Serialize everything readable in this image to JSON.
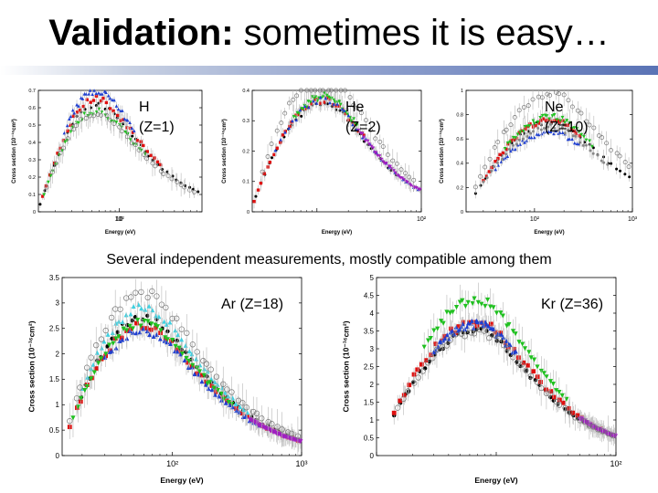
{
  "slide": {
    "title_bold": "Validation:",
    "title_rest": " sometimes it is easy…",
    "subtitle": "Several independent measurements, mostly compatible among them"
  },
  "colors": {
    "black": "#000000",
    "red": "#e01010",
    "green": "#20c020",
    "blue": "#1f3fd0",
    "cyan": "#40d0e0",
    "magenta": "#a020c0",
    "gray": "#888888",
    "open": "#777777",
    "err": "#b8b8b8"
  },
  "chart_data": [
    {
      "id": "H",
      "type": "scatter",
      "label_line1": "H",
      "label_line2": "(Z=1)",
      "xlabel": "Energy (eV)",
      "ylabel": "Cross section (10⁻¹⁶cm²)",
      "xscale": "log",
      "xlim": [
        13,
        800
      ],
      "ylim": [
        0,
        0.7
      ],
      "xticks": [
        "10",
        "10²"
      ],
      "yticks": [
        "0",
        "0.1",
        "0.2",
        "0.3",
        "0.4",
        "0.5",
        "0.6",
        "0.7"
      ],
      "peak_x": 55,
      "width": 1.0,
      "tail": 0.65,
      "series": [
        {
          "style": "black",
          "peak": 0.62,
          "xmin": 13.6,
          "xmax": 800
        },
        {
          "style": "red",
          "peak": 0.65,
          "xmin": 14.5,
          "xmax": 300
        },
        {
          "style": "blue",
          "peak": 0.7,
          "xmin": 25,
          "xmax": 150
        },
        {
          "style": "green",
          "peak": 0.58,
          "xmin": 15,
          "xmax": 200
        },
        {
          "style": "open",
          "peak": 0.57,
          "xmin": 16,
          "xmax": 700
        }
      ]
    },
    {
      "id": "He",
      "type": "scatter",
      "label_line1": "He",
      "label_line2": "(Z=2)",
      "xlabel": "Energy (eV)",
      "ylabel": "Cross section (10⁻¹⁶cm²)",
      "xscale": "log",
      "xlim": [
        24,
        1000
      ],
      "ylim": [
        0,
        0.4
      ],
      "xticks": [
        "10²"
      ],
      "yticks": [
        "0",
        "0.1",
        "0.2",
        "0.3",
        "0.4"
      ],
      "peak_x": 120,
      "width": 0.85,
      "tail": 0.85,
      "series": [
        {
          "style": "black",
          "peak": 0.36,
          "xmin": 26,
          "xmax": 600
        },
        {
          "style": "red",
          "peak": 0.37,
          "xmin": 25,
          "xmax": 300
        },
        {
          "style": "green",
          "peak": 0.38,
          "xmin": 60,
          "xmax": 250
        },
        {
          "style": "blue",
          "peak": 0.37,
          "xmin": 40,
          "xmax": 1000
        },
        {
          "style": "magenta",
          "peak": 0.37,
          "xmin": 250,
          "xmax": 1000
        },
        {
          "style": "open",
          "peak": 0.46,
          "xmin": 30,
          "xmax": 900
        }
      ]
    },
    {
      "id": "Ne",
      "type": "scatter",
      "label_line1": "Ne",
      "label_line2": "(Z=10)",
      "xlabel": "Energy (eV)",
      "ylabel": "Cross section (10⁻¹⁶cm²)",
      "xscale": "log",
      "xlim": [
        20,
        1000
      ],
      "ylim": [
        0,
        1.0
      ],
      "xticks": [
        "10²",
        "10³"
      ],
      "yticks": [
        "0",
        "0.2",
        "0.4",
        "0.6",
        "0.8",
        "1"
      ],
      "peak_x": 150,
      "width": 0.95,
      "tail": 0.6,
      "series": [
        {
          "style": "black",
          "peak": 0.74,
          "xmin": 25,
          "xmax": 1000
        },
        {
          "style": "red",
          "peak": 0.76,
          "xmin": 30,
          "xmax": 300
        },
        {
          "style": "green",
          "peak": 0.78,
          "xmin": 50,
          "xmax": 400
        },
        {
          "style": "blue",
          "peak": 0.66,
          "xmin": 40,
          "xmax": 300
        },
        {
          "style": "gray",
          "peak": 0.7,
          "xmin": 30,
          "xmax": 600
        },
        {
          "style": "open",
          "peak": 0.98,
          "xmin": 25,
          "xmax": 1000
        }
      ]
    },
    {
      "id": "Ar",
      "type": "scatter",
      "label_line1": "Ar (Z=18)",
      "label_line2": "",
      "xlabel": "Energy (eV)",
      "ylabel": "Cross section (10⁻¹⁶cm²)",
      "xscale": "log",
      "xlim": [
        14,
        1000
      ],
      "ylim": [
        0,
        3.5
      ],
      "xticks": [
        "10²",
        "10³"
      ],
      "yticks": [
        "0",
        "0.5",
        "1",
        "1.5",
        "2",
        "2.5",
        "3",
        "3.5"
      ],
      "peak_x": 60,
      "width": 0.85,
      "tail": 0.75,
      "series": [
        {
          "style": "black",
          "peak": 2.7,
          "xmin": 16,
          "xmax": 1000
        },
        {
          "style": "red",
          "peak": 2.55,
          "xmin": 16,
          "xmax": 1000
        },
        {
          "style": "blue",
          "peak": 2.45,
          "xmin": 30,
          "xmax": 500
        },
        {
          "style": "cyan",
          "peak": 2.9,
          "xmin": 20,
          "xmax": 400
        },
        {
          "style": "green",
          "peak": 2.6,
          "xmin": 17,
          "xmax": 300
        },
        {
          "style": "magenta",
          "peak": 2.5,
          "xmin": 400,
          "xmax": 1000
        },
        {
          "style": "open",
          "peak": 3.2,
          "xmin": 16,
          "xmax": 1000
        }
      ]
    },
    {
      "id": "Kr",
      "type": "scatter",
      "label_line1": "Kr (Z=36)",
      "label_line2": "",
      "xlabel": "Energy (eV)",
      "ylabel": "Cross section (10⁻¹⁶cm²)",
      "xscale": "log",
      "xlim": [
        10,
        1000
      ],
      "ylim": [
        0,
        5
      ],
      "xticks": [
        "10²"
      ],
      "yticks": [
        "0",
        "0.5",
        "1",
        "1.5",
        "2",
        "2.5",
        "3",
        "3.5",
        "4",
        "4.5",
        "5"
      ],
      "peak_x": 70,
      "width": 0.9,
      "tail": 0.7,
      "series": [
        {
          "style": "black",
          "peak": 3.5,
          "xmin": 14,
          "xmax": 1000
        },
        {
          "style": "red",
          "peak": 3.75,
          "xmin": 14,
          "xmax": 800
        },
        {
          "style": "green",
          "peak": 4.35,
          "xmin": 25,
          "xmax": 400
        },
        {
          "style": "blue",
          "peak": 3.7,
          "xmin": 30,
          "xmax": 150
        },
        {
          "style": "magenta",
          "peak": 3.6,
          "xmin": 500,
          "xmax": 1000
        },
        {
          "style": "open",
          "peak": 3.5,
          "xmin": 15,
          "xmax": 1000
        }
      ]
    }
  ]
}
